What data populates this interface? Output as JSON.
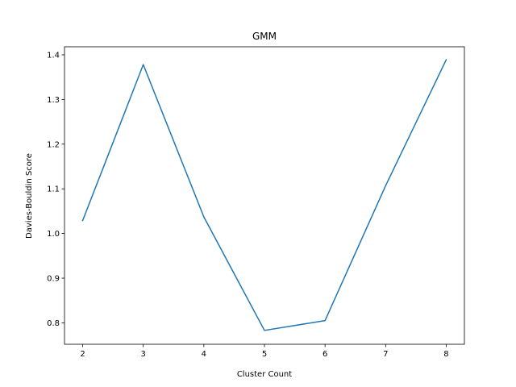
{
  "chart_data": {
    "type": "line",
    "title": "GMM",
    "xlabel": "Cluster Count",
    "ylabel": "Davies-Bouldin Score",
    "xlim": [
      1.7,
      8.3
    ],
    "ylim": [
      0.752,
      1.418
    ],
    "x_ticks": [
      2,
      3,
      4,
      5,
      6,
      7,
      8
    ],
    "y_ticks": [
      0.8,
      0.9,
      1.0,
      1.1,
      1.2,
      1.3,
      1.4
    ],
    "y_tick_labels": [
      "0.8",
      "0.9",
      "1.0",
      "1.1",
      "1.2",
      "1.3",
      "1.4"
    ],
    "grid": false,
    "legend": "none",
    "series": [
      {
        "color": "#1f77b4",
        "x": [
          2,
          3,
          4,
          5,
          6,
          7,
          8
        ],
        "y": [
          1.029,
          1.378,
          1.037,
          0.783,
          0.805,
          1.107,
          1.389
        ]
      }
    ]
  }
}
